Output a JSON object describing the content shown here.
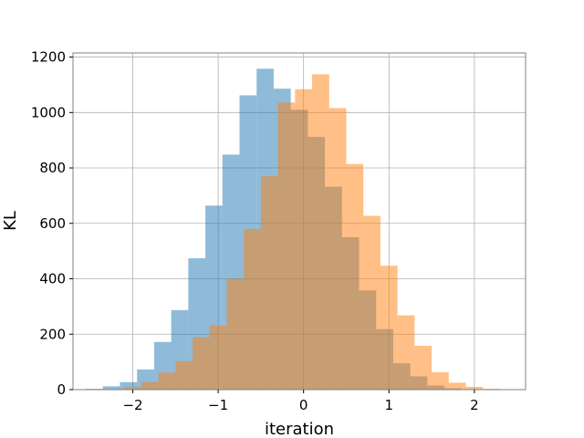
{
  "chart_data": {
    "type": "bar",
    "title": "",
    "xlabel": "iteration",
    "ylabel": "KL",
    "xlim": [
      -2.7,
      2.6
    ],
    "ylim": [
      0,
      1215
    ],
    "grid": true,
    "xticks": [
      -2,
      -1,
      0,
      1,
      2
    ],
    "xtick_labels": [
      "−2",
      "−1",
      "0",
      "1",
      "2"
    ],
    "yticks": [
      0,
      200,
      400,
      600,
      800,
      1000,
      1200
    ],
    "ytick_labels": [
      "0",
      "200",
      "400",
      "600",
      "800",
      "1000",
      "1200"
    ],
    "series": [
      {
        "color": "#1f77b4",
        "opacity": 0.5,
        "bin_edges": [
          -2.55,
          -2.35,
          -2.15,
          -1.95,
          -1.75,
          -1.55,
          -1.35,
          -1.15,
          -0.95,
          -0.75,
          -0.55,
          -0.35,
          -0.15,
          0.05,
          0.25,
          0.45,
          0.65,
          0.85,
          1.05,
          1.25,
          1.45,
          1.65,
          1.85
        ],
        "counts": [
          3,
          12,
          27,
          73,
          172,
          287,
          474,
          664,
          848,
          1062,
          1158,
          1086,
          1010,
          912,
          732,
          550,
          358,
          218,
          95,
          48,
          15,
          5
        ]
      },
      {
        "color": "#ff7f0e",
        "opacity": 0.5,
        "bin_edges": [
          -2.3,
          -2.1,
          -1.9,
          -1.7,
          -1.5,
          -1.3,
          -1.1,
          -0.9,
          -0.7,
          -0.5,
          -0.3,
          -0.1,
          0.1,
          0.3,
          0.5,
          0.7,
          0.9,
          1.1,
          1.3,
          1.5,
          1.7,
          1.9,
          2.1,
          2.3
        ],
        "counts": [
          2,
          10,
          28,
          62,
          103,
          189,
          231,
          400,
          580,
          770,
          1036,
          1084,
          1138,
          1016,
          814,
          627,
          447,
          268,
          158,
          63,
          25,
          10,
          3
        ]
      }
    ]
  }
}
